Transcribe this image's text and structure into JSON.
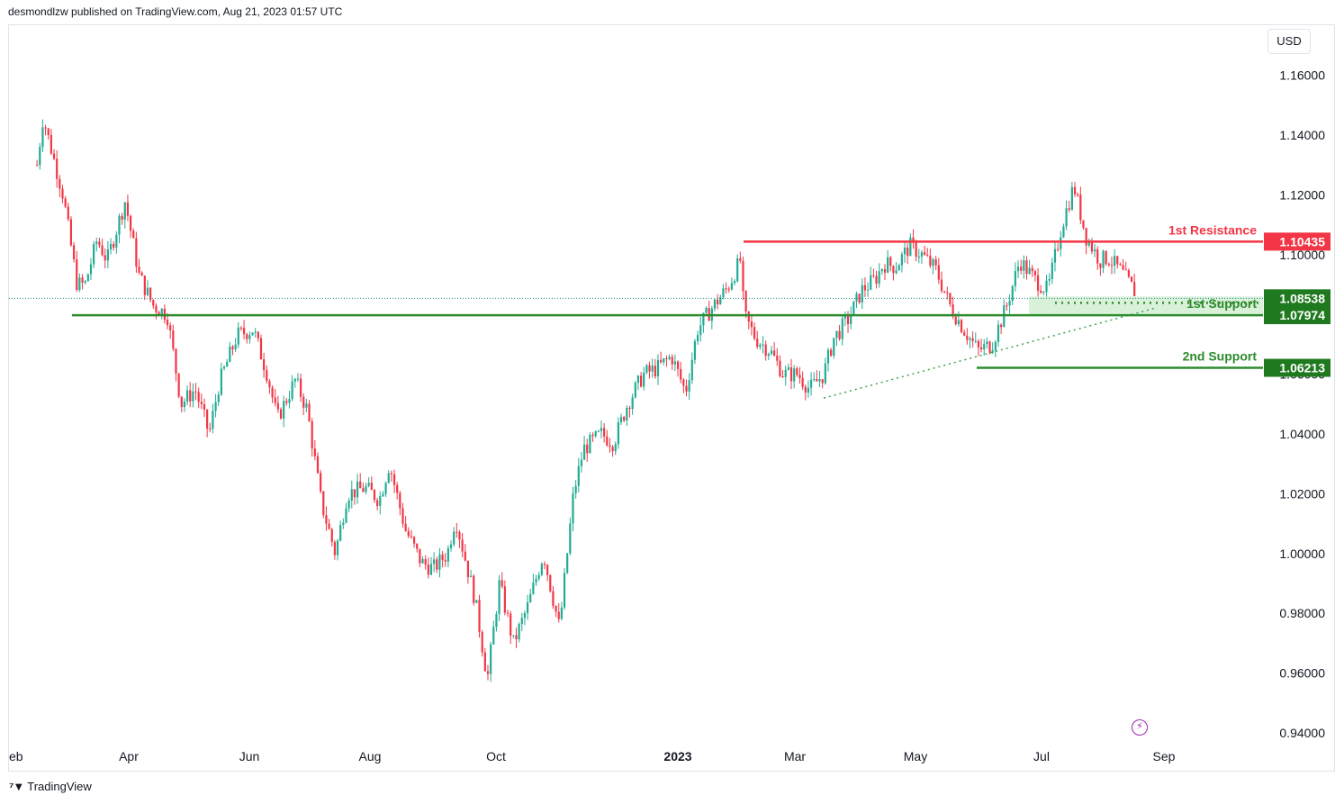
{
  "header": {
    "attribution": "desmondlzw published on TradingView.com, Aug 21, 2023 01:57 UTC"
  },
  "currency": "USD",
  "footer": {
    "brand": "TradingView"
  },
  "colors": {
    "up": "#22ab94",
    "down": "#f23645",
    "resistance": "#f23645",
    "support": "#2e8b2e",
    "support_zone": "#cfeccf",
    "price_line": "#1e8a8a"
  },
  "chart_data": {
    "type": "candlestick",
    "instrument_quote": "USD",
    "ylim": [
      0.93,
      1.18
    ],
    "y_ticks": [
      "1.16000",
      "1.14000",
      "1.12000",
      "1.10000",
      "1.08000",
      "1.06000",
      "1.04000",
      "1.02000",
      "1.00000",
      "0.98000",
      "0.96000",
      "0.94000"
    ],
    "x_ticks": [
      "eb",
      "Apr",
      "Jun",
      "Aug",
      "Oct",
      "2023",
      "Mar",
      "May",
      "Jul",
      "Sep"
    ],
    "price_path": [
      [
        "2022-02-15",
        1.13
      ],
      [
        "2022-02-18",
        1.146
      ],
      [
        "2022-02-28",
        1.12
      ],
      [
        "2022-03-07",
        1.09
      ],
      [
        "2022-03-11",
        1.09
      ],
      [
        "2022-03-17",
        1.105
      ],
      [
        "2022-03-22",
        1.098
      ],
      [
        "2022-03-31",
        1.118
      ],
      [
        "2022-04-07",
        1.093
      ],
      [
        "2022-04-14",
        1.083
      ],
      [
        "2022-04-21",
        1.08
      ],
      [
        "2022-04-28",
        1.05
      ],
      [
        "2022-05-05",
        1.055
      ],
      [
        "2022-05-12",
        1.04
      ],
      [
        "2022-05-17",
        1.057
      ],
      [
        "2022-05-26",
        1.073
      ],
      [
        "2022-06-03",
        1.075
      ],
      [
        "2022-06-10",
        1.06
      ],
      [
        "2022-06-15",
        1.045
      ],
      [
        "2022-06-24",
        1.058
      ],
      [
        "2022-06-30",
        1.048
      ],
      [
        "2022-07-07",
        1.017
      ],
      [
        "2022-07-14",
        1.0
      ],
      [
        "2022-07-20",
        1.02
      ],
      [
        "2022-07-29",
        1.022
      ],
      [
        "2022-08-05",
        1.018
      ],
      [
        "2022-08-10",
        1.03
      ],
      [
        "2022-08-18",
        1.008
      ],
      [
        "2022-08-26",
        0.997
      ],
      [
        "2022-09-01",
        0.995
      ],
      [
        "2022-09-08",
        1.0
      ],
      [
        "2022-09-12",
        1.012
      ],
      [
        "2022-09-22",
        0.984
      ],
      [
        "2022-09-28",
        0.958
      ],
      [
        "2022-10-04",
        0.99
      ],
      [
        "2022-10-11",
        0.97
      ],
      [
        "2022-10-18",
        0.982
      ],
      [
        "2022-10-26",
        1.0
      ],
      [
        "2022-11-03",
        0.975
      ],
      [
        "2022-11-10",
        1.02
      ],
      [
        "2022-11-15",
        1.035
      ],
      [
        "2022-11-24",
        1.04
      ],
      [
        "2022-11-30",
        1.037
      ],
      [
        "2022-12-07",
        1.05
      ],
      [
        "2022-12-15",
        1.06
      ],
      [
        "2022-12-22",
        1.062
      ],
      [
        "2022-12-29",
        1.066
      ],
      [
        "2023-01-05",
        1.054
      ],
      [
        "2023-01-11",
        1.075
      ],
      [
        "2023-01-18",
        1.082
      ],
      [
        "2023-01-26",
        1.089
      ],
      [
        "2023-02-02",
        1.099
      ],
      [
        "2023-02-03",
        1.08
      ],
      [
        "2023-02-09",
        1.072
      ],
      [
        "2023-02-16",
        1.068
      ],
      [
        "2023-02-23",
        1.06
      ],
      [
        "2023-03-02",
        1.06
      ],
      [
        "2023-03-08",
        1.055
      ],
      [
        "2023-03-15",
        1.06
      ],
      [
        "2023-03-20",
        1.072
      ],
      [
        "2023-03-27",
        1.078
      ],
      [
        "2023-04-03",
        1.088
      ],
      [
        "2023-04-10",
        1.092
      ],
      [
        "2023-04-14",
        1.097
      ],
      [
        "2023-04-20",
        1.096
      ],
      [
        "2023-04-27",
        1.103
      ],
      [
        "2023-05-03",
        1.1
      ],
      [
        "2023-05-10",
        1.095
      ],
      [
        "2023-05-17",
        1.083
      ],
      [
        "2023-05-24",
        1.075
      ],
      [
        "2023-05-31",
        1.068
      ],
      [
        "2023-06-07",
        1.07
      ],
      [
        "2023-06-14",
        1.082
      ],
      [
        "2023-06-21",
        1.098
      ],
      [
        "2023-06-28",
        1.092
      ],
      [
        "2023-07-05",
        1.088
      ],
      [
        "2023-07-12",
        1.11
      ],
      [
        "2023-07-18",
        1.123
      ],
      [
        "2023-07-24",
        1.106
      ],
      [
        "2023-07-31",
        1.098
      ],
      [
        "2023-08-04",
        1.099
      ],
      [
        "2023-08-11",
        1.094
      ],
      [
        "2023-08-18",
        1.087
      ]
    ],
    "last_price": 1.08538,
    "annotations": {
      "resistance": {
        "label": "1st Resistance",
        "value": 1.10435,
        "price_label": "1.10435"
      },
      "support1": {
        "label": "1st Support",
        "value": 1.07974,
        "price_label": "1.07974"
      },
      "support2": {
        "label": "2nd Support",
        "value": 1.06213,
        "price_label": "1.06213"
      },
      "current": {
        "price_label": "1.08538"
      },
      "support_zone": [
        1.08,
        1.086
      ],
      "trendline": [
        [
          "2023-03-15",
          1.052
        ],
        [
          "2023-08-27",
          1.082
        ]
      ]
    }
  }
}
